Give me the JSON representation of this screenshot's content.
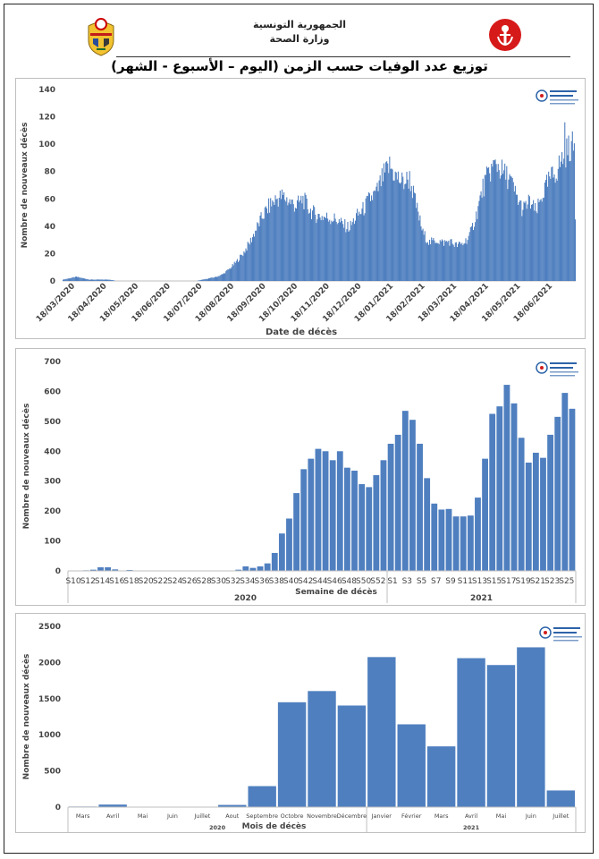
{
  "header": {
    "republic": "الجمهورية التونسية",
    "ministry": "وزارة الصحة",
    "title": "توزيع عدد الوفيات حسب الزمن (اليوم – الأسبوع - الشهر)"
  },
  "colors": {
    "bar": "#4f7fbf",
    "axis": "#bfbfbf",
    "text": "#444444"
  },
  "icons": {
    "left_emblem": "tunisia-coat-of-arms-icon",
    "right_emblem": "ministry-of-health-logo-icon",
    "panel_logo": "observatory-logo-icon"
  },
  "chart_data": [
    {
      "type": "bar",
      "id": "daily",
      "ylabel": "Nombre de nouveaux décès",
      "xlabel": "Date de décès",
      "ylim": [
        0,
        140
      ],
      "yticks": [
        0,
        20,
        40,
        60,
        80,
        100,
        120,
        140
      ],
      "xticks": [
        "18/03/2020",
        "18/04/2020",
        "18/05/2020",
        "18/06/2020",
        "18/07/2020",
        "18/08/2020",
        "18/09/2020",
        "18/10/2020",
        "18/11/2020",
        "18/12/2020",
        "18/01/2021",
        "18/02/2021",
        "18/03/2021",
        "18/04/2021",
        "18/05/2021",
        "18/06/2021"
      ],
      "grid": false,
      "legend": "none",
      "series_summary": "daily values, roughly weekly averages below",
      "weekly_levels": [
        1,
        2,
        3,
        2,
        1,
        1,
        1,
        1,
        0,
        0,
        0,
        0,
        0,
        0,
        0,
        0,
        0,
        0,
        0,
        0,
        0,
        1,
        2,
        3,
        5,
        9,
        14,
        20,
        28,
        38,
        48,
        55,
        60,
        62,
        58,
        55,
        60,
        52,
        48,
        47,
        46,
        45,
        41,
        39,
        47,
        52,
        60,
        64,
        76,
        84,
        76,
        72,
        75,
        55,
        35,
        28,
        30,
        28,
        29,
        26,
        27,
        33,
        48,
        68,
        80,
        86,
        79,
        75,
        62,
        52,
        58,
        50,
        64,
        74,
        80,
        90,
        98
      ],
      "peak": 116
    },
    {
      "type": "bar",
      "id": "weekly",
      "ylabel": "Nombre de nouveaux décès",
      "xlabel": "Semaine de décès",
      "ylim": [
        0,
        700
      ],
      "yticks": [
        0,
        100,
        200,
        300,
        400,
        500,
        600,
        700
      ],
      "categories": [
        "S10",
        "S11",
        "S12",
        "S13",
        "S14",
        "S15",
        "S16",
        "S17",
        "S18",
        "S19",
        "S20",
        "S21",
        "S22",
        "S23",
        "S24",
        "S25",
        "S26",
        "S27",
        "S28",
        "S29",
        "S30",
        "S31",
        "S32",
        "S33",
        "S34",
        "S35",
        "S36",
        "S37",
        "S38",
        "S39",
        "S40",
        "S41",
        "S42",
        "S43",
        "S44",
        "S45",
        "S46",
        "S47",
        "S48",
        "S49",
        "S50",
        "S51",
        "S52",
        "S53",
        "S1",
        "S2",
        "S3",
        "S4",
        "S5",
        "S6",
        "S7",
        "S8",
        "S9",
        "S10",
        "S11",
        "S12",
        "S13",
        "S14",
        "S15",
        "S16",
        "S17",
        "S18",
        "S19",
        "S20",
        "S21",
        "S22",
        "S23",
        "S24",
        "S25",
        "S26"
      ],
      "tick_labels_2020": [
        "S10",
        "S12",
        "S14",
        "S16",
        "S18",
        "S20",
        "S22",
        "S24",
        "S26",
        "S28",
        "S30",
        "S32",
        "S34",
        "S36",
        "S38",
        "S40",
        "S42",
        "S44",
        "S46",
        "S48",
        "S50",
        "S52"
      ],
      "tick_labels_2021": [
        "S1",
        "S3",
        "S5",
        "S7",
        "S9",
        "S11",
        "S13",
        "S15",
        "S17",
        "S19",
        "S21",
        "S23",
        "S25"
      ],
      "values": [
        0,
        1,
        2,
        4,
        12,
        12,
        5,
        1,
        3,
        1,
        0,
        0,
        0,
        0,
        0,
        0,
        0,
        0,
        0,
        0,
        0,
        0,
        1,
        4,
        15,
        10,
        15,
        25,
        60,
        125,
        175,
        260,
        340,
        375,
        408,
        400,
        370,
        400,
        345,
        335,
        290,
        280,
        320,
        370,
        425,
        455,
        535,
        505,
        425,
        310,
        225,
        205,
        207,
        182,
        182,
        185,
        245,
        375,
        525,
        550,
        622,
        560,
        445,
        362,
        395,
        378,
        455,
        515,
        595,
        542
      ],
      "year_groups": [
        "2020",
        "2021"
      ],
      "grid": false,
      "legend": "none"
    },
    {
      "type": "bar",
      "id": "monthly",
      "ylabel": "Nombre de nouveaux décès",
      "xlabel": "Mois de décès",
      "ylim": [
        0,
        2500
      ],
      "yticks": [
        0,
        500,
        1000,
        1500,
        2000,
        2500
      ],
      "categories": [
        "Mars",
        "Avril",
        "Mai",
        "Juin",
        "Juillet",
        "Aout",
        "Septembre",
        "Octobre",
        "Novembre",
        "Décembre",
        "Janvier",
        "Février",
        "Mars",
        "Avril",
        "Mai",
        "Juin",
        "Juillet"
      ],
      "values": [
        8,
        35,
        5,
        3,
        4,
        30,
        290,
        1450,
        1605,
        1405,
        2075,
        1145,
        840,
        2060,
        1965,
        2210,
        230
      ],
      "year_groups": [
        "2020",
        "2021"
      ],
      "grid": false,
      "legend": "none"
    }
  ]
}
